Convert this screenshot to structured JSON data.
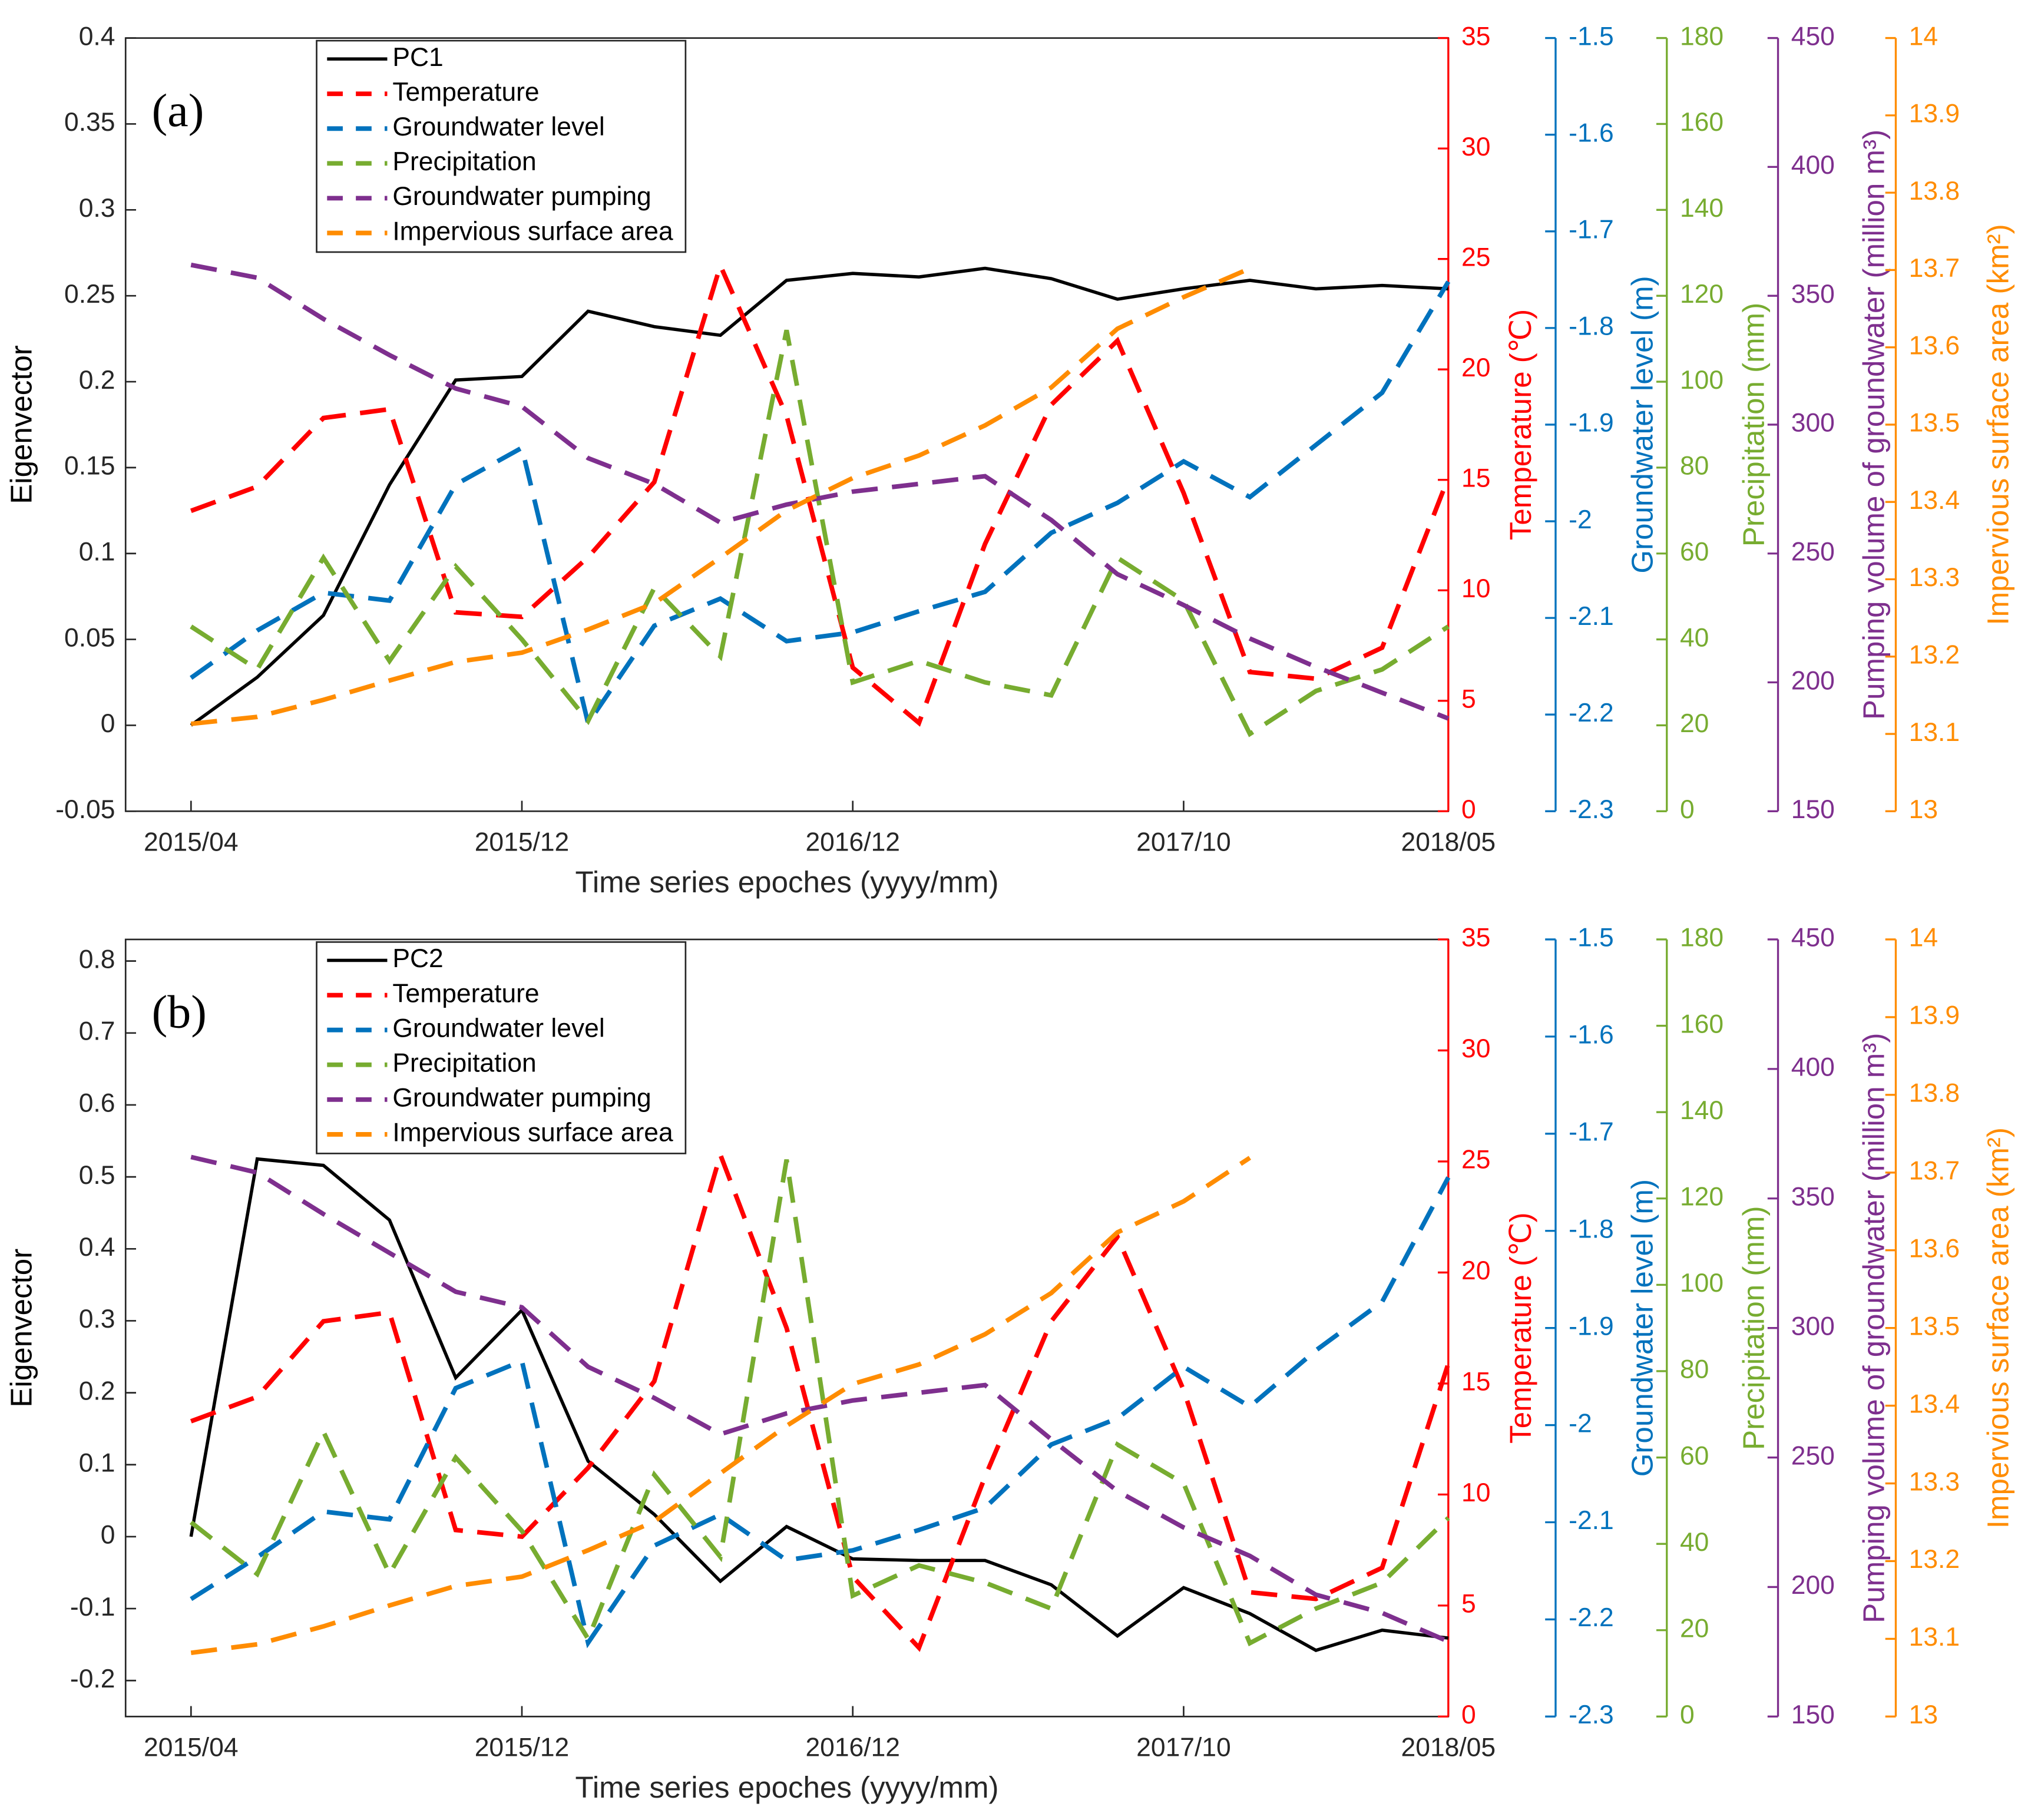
{
  "chart_data": [
    {
      "type": "line",
      "label": "(a)",
      "x_label": "Time series epoches (yyyy/mm)",
      "y_label": "Eigenvector",
      "legend": "upper left",
      "categories": [
        "2015/04",
        null,
        null,
        null,
        null,
        "2015/12",
        null,
        null,
        null,
        null,
        "2016/12",
        null,
        null,
        null,
        null,
        "2017/10",
        null,
        null,
        null,
        "2018/05"
      ],
      "ylim": [
        -0.05,
        0.4
      ],
      "yticks": [
        -0.05,
        0,
        0.05,
        0.1,
        0.15,
        0.2,
        0.25,
        0.3,
        0.35,
        0.4
      ],
      "y2lim": [
        0,
        35
      ],
      "y2ticks": [
        0,
        5,
        10,
        15,
        20,
        25,
        30,
        35
      ],
      "y2label": "Temperature (℃)",
      "y3lim": [
        -2.3,
        -1.5
      ],
      "y3ticks": [
        -2.3,
        -2.2,
        -2.1,
        -2,
        -1.9,
        -1.8,
        -1.7,
        -1.6,
        -1.5
      ],
      "y3label": "Groundwater level (m)",
      "y4lim": [
        0,
        180
      ],
      "y4ticks": [
        0,
        20,
        40,
        60,
        80,
        100,
        120,
        140,
        160,
        180
      ],
      "y4label": "Precipitation (mm)",
      "y5lim": [
        150,
        450
      ],
      "y5ticks": [
        150,
        200,
        250,
        300,
        350,
        400,
        450
      ],
      "y5label": "Pumping volume of groundwater (million m³)",
      "y6lim": [
        13,
        14
      ],
      "y6ticks": [
        13,
        13.1,
        13.2,
        13.3,
        13.4,
        13.5,
        13.6,
        13.7,
        13.8,
        13.9,
        14
      ],
      "y6label": "Impervious surface area (km²)",
      "series": [
        {
          "name": "PC1",
          "color": "#000000",
          "axis": "y",
          "dashed": false,
          "values": [
            0,
            0.028,
            0.064,
            0.14,
            0.201,
            0.203,
            0.241,
            0.232,
            0.227,
            0.259,
            0.263,
            0.261,
            0.266,
            0.26,
            0.248,
            0.254,
            0.259,
            0.254,
            0.256,
            0.254
          ]
        },
        {
          "name": "Temperature",
          "color": "#ff0000",
          "axis": "y2",
          "dashed": true,
          "values": [
            13.6,
            14.7,
            17.8,
            18.2,
            9.0,
            8.8,
            11.5,
            14.9,
            24.7,
            17.9,
            6.5,
            4.0,
            12.1,
            18.4,
            21.3,
            14.4,
            6.3,
            6.0,
            7.4,
            15.1
          ]
        },
        {
          "name": "Groundwater level",
          "color": "#0072bd",
          "axis": "y3",
          "dashed": true,
          "values": [
            -2.162,
            -2.113,
            -2.074,
            -2.082,
            -1.962,
            -1.924,
            -2.209,
            -2.108,
            -2.08,
            -2.124,
            -2.115,
            -2.093,
            -2.073,
            -2.012,
            -1.981,
            -1.938,
            -1.975,
            -1.921,
            -1.867,
            -1.752
          ]
        },
        {
          "name": "Precipitation",
          "color": "#77ac30",
          "axis": "y4",
          "dashed": true,
          "values": [
            43,
            33,
            59,
            35,
            57,
            40,
            21,
            52,
            36,
            112,
            30,
            35,
            30,
            27,
            59,
            49,
            18,
            28,
            33,
            43
          ]
        },
        {
          "name": "Groundwater pumping",
          "color": "#7e2f8e",
          "axis": "y5",
          "dashed": true,
          "values": [
            362,
            357,
            341,
            327,
            314,
            307,
            287,
            277,
            262,
            269,
            274,
            277,
            280,
            263,
            242,
            230,
            217,
            206,
            196,
            186
          ]
        },
        {
          "name": "Impervious surface area",
          "color": "#ff8c00",
          "axis": "y6",
          "dashed": true,
          "values": [
            13.113,
            13.122,
            13.144,
            13.169,
            13.193,
            13.205,
            13.235,
            13.269,
            13.328,
            13.389,
            13.431,
            13.46,
            13.499,
            13.548,
            13.624,
            13.665,
            13.702,
            null,
            null,
            null
          ]
        }
      ]
    },
    {
      "type": "line",
      "label": "(b)",
      "x_label": "Time series epoches (yyyy/mm)",
      "y_label": "Eigenvector",
      "legend": "upper left",
      "categories": [
        "2015/04",
        null,
        null,
        null,
        null,
        "2015/12",
        null,
        null,
        null,
        null,
        "2016/12",
        null,
        null,
        null,
        null,
        "2017/10",
        null,
        null,
        null,
        "2018/05"
      ],
      "ylim": [
        -0.25,
        0.83
      ],
      "yticks": [
        -0.2,
        -0.1,
        0,
        0.1,
        0.2,
        0.3,
        0.4,
        0.5,
        0.6,
        0.7,
        0.8
      ],
      "y2lim": [
        0,
        35
      ],
      "y2ticks": [
        0,
        5,
        10,
        15,
        20,
        25,
        30,
        35
      ],
      "y2label": "Temperature (℃)",
      "y3lim": [
        -2.3,
        -1.5
      ],
      "y3ticks": [
        -2.3,
        -2.2,
        -2.1,
        -2,
        -1.9,
        -1.8,
        -1.7,
        -1.6,
        -1.5
      ],
      "y3label": "Groundwater level (m)",
      "y4lim": [
        0,
        180
      ],
      "y4ticks": [
        0,
        20,
        40,
        60,
        80,
        100,
        120,
        140,
        160,
        180
      ],
      "y4label": "Precipitation (mm)",
      "y5lim": [
        150,
        450
      ],
      "y5ticks": [
        150,
        200,
        250,
        300,
        350,
        400,
        450
      ],
      "y5label": "Pumping volume of groundwater (million m³)",
      "y6lim": [
        13,
        14
      ],
      "y6ticks": [
        13,
        13.1,
        13.2,
        13.3,
        13.4,
        13.5,
        13.6,
        13.7,
        13.8,
        13.9,
        14
      ],
      "y6label": "Impervious surface area (km²)",
      "series": [
        {
          "name": "PC2",
          "color": "#000000",
          "axis": "y",
          "dashed": false,
          "values": [
            0,
            0.525,
            0.516,
            0.44,
            0.221,
            0.315,
            0.105,
            0.031,
            -0.062,
            0.014,
            -0.031,
            -0.033,
            -0.033,
            -0.067,
            -0.138,
            -0.071,
            -0.107,
            -0.158,
            -0.13,
            -0.141
          ]
        },
        {
          "name": "Temperature",
          "color": "#ff0000",
          "axis": "y2",
          "dashed": true,
          "values": [
            13.3,
            14.4,
            17.8,
            18.2,
            8.4,
            8.1,
            11.2,
            15.1,
            25.3,
            17.5,
            6.3,
            3.1,
            10.8,
            17.8,
            21.6,
            14.7,
            5.6,
            5.3,
            6.7,
            15.9
          ]
        },
        {
          "name": "Groundwater level",
          "color": "#0072bd",
          "axis": "y3",
          "dashed": true,
          "values": [
            -2.179,
            -2.136,
            -2.089,
            -2.097,
            -1.962,
            -1.934,
            -2.224,
            -2.124,
            -2.092,
            -2.139,
            -2.129,
            -2.108,
            -2.085,
            -2.02,
            -1.993,
            -1.94,
            -1.981,
            -1.923,
            -1.873,
            -1.745
          ]
        },
        {
          "name": "Precipitation",
          "color": "#77ac30",
          "axis": "y4",
          "dashed": true,
          "values": [
            45,
            33,
            66,
            33,
            60,
            43,
            18,
            56,
            37,
            129,
            28,
            35,
            31,
            25,
            63,
            54,
            17,
            25,
            31,
            46
          ]
        },
        {
          "name": "Groundwater pumping",
          "color": "#7e2f8e",
          "axis": "y5",
          "dashed": true,
          "values": [
            366,
            360,
            344,
            329,
            314,
            308,
            285,
            273,
            259,
            267,
            272,
            275,
            278,
            257,
            237,
            223,
            212,
            197,
            190,
            179
          ]
        },
        {
          "name": "Impervious surface area",
          "color": "#ff8c00",
          "axis": "y6",
          "dashed": true,
          "values": [
            13.082,
            13.093,
            13.116,
            13.143,
            13.168,
            13.18,
            13.214,
            13.251,
            13.313,
            13.374,
            13.428,
            13.453,
            13.492,
            13.545,
            13.623,
            13.663,
            13.719,
            null,
            null,
            null
          ]
        }
      ]
    }
  ]
}
